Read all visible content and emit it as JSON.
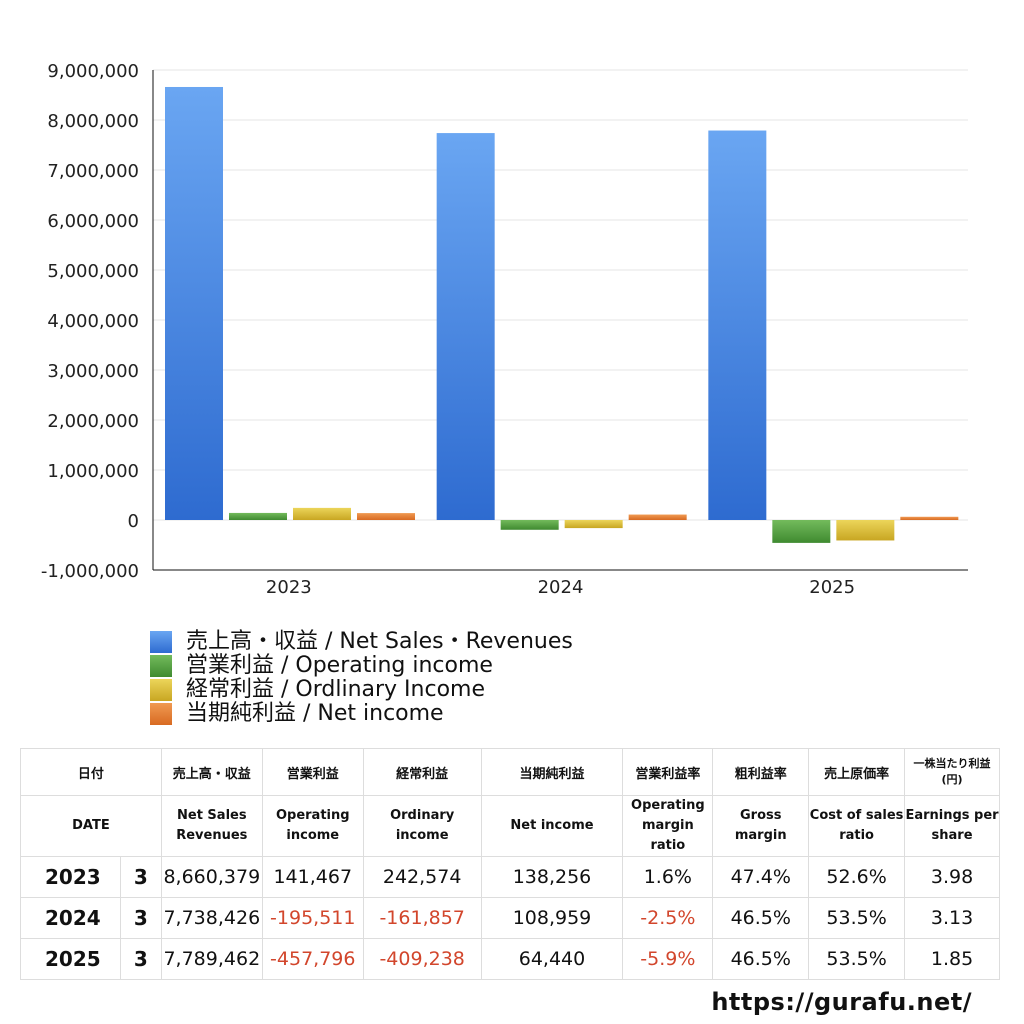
{
  "chart_data": {
    "type": "bar",
    "categories": [
      "2023",
      "2024",
      "2025"
    ],
    "series": [
      {
        "name": "売上高・収益 / Net Sales・Revenues",
        "color": "#3d7fe0",
        "values": [
          8660379,
          7738426,
          7789462
        ]
      },
      {
        "name": "営業利益 / Operating income",
        "color": "#4e9a3c",
        "values": [
          141467,
          -195511,
          -457796
        ]
      },
      {
        "name": "経常利益 / Ordlinary Income",
        "color": "#d6b733",
        "values": [
          242574,
          -161857,
          -409238
        ]
      },
      {
        "name": "当期純利益 / Net income",
        "color": "#e07b2e",
        "values": [
          138256,
          108959,
          64440
        ]
      }
    ],
    "y_ticks": [
      "9,000,000",
      "8,000,000",
      "7,000,000",
      "6,000,000",
      "5,000,000",
      "4,000,000",
      "3,000,000",
      "2,000,000",
      "1,000,000",
      "0",
      "-1,000,000"
    ],
    "ylim": [
      -1000000,
      9000000
    ],
    "grid": true,
    "legend_position": "bottom-left"
  },
  "table": {
    "header_jp": [
      "日付",
      "売上高・収益",
      "営業利益",
      "経常利益",
      "当期純利益",
      "営業利益率",
      "粗利益率",
      "売上原価率",
      "一株当たり利益(円)"
    ],
    "header_en": [
      "DATE",
      "Net Sales Revenues",
      "Operating income",
      "Ordinary income",
      "Net income",
      "Operating margin ratio",
      "Gross margin",
      "Cost of sales ratio",
      "Earnings per share"
    ],
    "rows": [
      {
        "year": "2023",
        "month": "3",
        "sales": "8,660,379",
        "operating": "141,467",
        "ordinary": "242,574",
        "net": "138,256",
        "op_margin": "1.6%",
        "gross": "47.4%",
        "cost": "52.6%",
        "eps": "3.98"
      },
      {
        "year": "2024",
        "month": "3",
        "sales": "7,738,426",
        "operating": "-195,511",
        "ordinary": "-161,857",
        "net": "108,959",
        "op_margin": "-2.5%",
        "gross": "46.5%",
        "cost": "53.5%",
        "eps": "3.13"
      },
      {
        "year": "2025",
        "month": "3",
        "sales": "7,789,462",
        "operating": "-457,796",
        "ordinary": "-409,238",
        "net": "64,440",
        "op_margin": "-5.9%",
        "gross": "46.5%",
        "cost": "53.5%",
        "eps": "1.85"
      }
    ]
  },
  "footer": {
    "url": "https://gurafu.net/"
  }
}
